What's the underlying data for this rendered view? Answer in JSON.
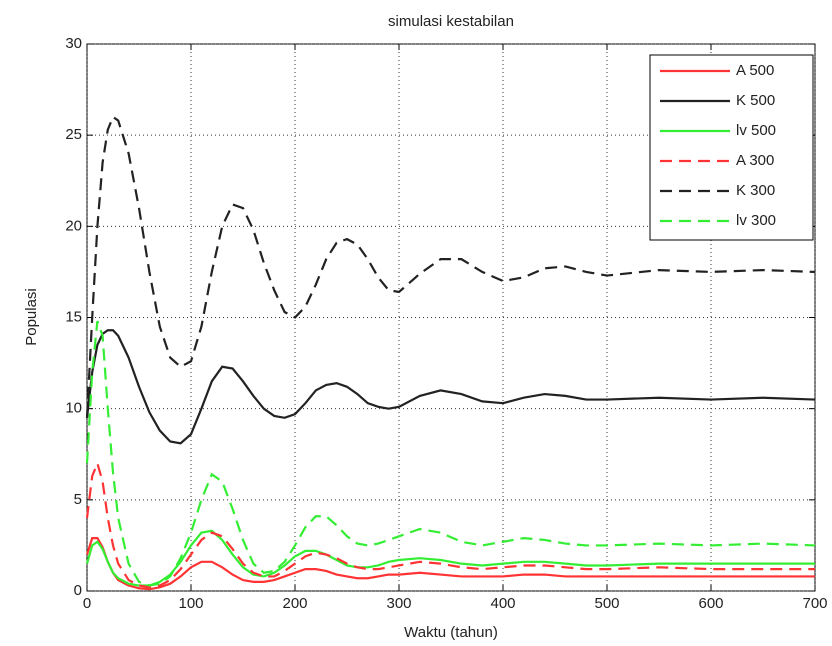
{
  "chart_data": {
    "type": "line",
    "title": "simulasi kestabilan",
    "x_label": "Waktu (tahun)",
    "y_label": "Populasi",
    "x": [
      0,
      5,
      10,
      15,
      20,
      25,
      30,
      40,
      50,
      60,
      70,
      80,
      90,
      100,
      110,
      120,
      130,
      140,
      150,
      160,
      170,
      180,
      190,
      200,
      210,
      220,
      230,
      240,
      250,
      260,
      270,
      280,
      290,
      300,
      320,
      340,
      360,
      380,
      400,
      420,
      440,
      460,
      480,
      500,
      550,
      600,
      650,
      700
    ],
    "series": [
      {
        "name": "A 500",
        "color": "#ff3333",
        "style": "solid",
        "values": [
          2,
          2.9,
          2.9,
          2.4,
          1.6,
          1,
          0.6,
          0.3,
          0.15,
          0.1,
          0.2,
          0.4,
          0.8,
          1.3,
          1.6,
          1.6,
          1.3,
          0.9,
          0.6,
          0.5,
          0.5,
          0.6,
          0.8,
          1,
          1.2,
          1.2,
          1.1,
          0.9,
          0.8,
          0.7,
          0.7,
          0.8,
          0.9,
          0.9,
          1,
          0.9,
          0.8,
          0.8,
          0.8,
          0.9,
          0.9,
          0.8,
          0.8,
          0.8,
          0.8,
          0.8,
          0.8,
          0.8
        ]
      },
      {
        "name": "K 500",
        "color": "#222222",
        "style": "solid",
        "values": [
          9.5,
          12,
          13.5,
          14.1,
          14.3,
          14.3,
          14,
          12.8,
          11.2,
          9.8,
          8.8,
          8.2,
          8.1,
          8.6,
          10,
          11.5,
          12.3,
          12.2,
          11.5,
          10.7,
          10,
          9.6,
          9.5,
          9.7,
          10.3,
          11,
          11.3,
          11.4,
          11.2,
          10.8,
          10.3,
          10.1,
          10,
          10.1,
          10.7,
          11,
          10.8,
          10.4,
          10.3,
          10.6,
          10.8,
          10.7,
          10.5,
          10.5,
          10.6,
          10.5,
          10.6,
          10.5
        ]
      },
      {
        "name": "lv 500",
        "color": "#33ee33",
        "style": "solid",
        "values": [
          1.5,
          2.5,
          2.7,
          2.3,
          1.6,
          1,
          0.7,
          0.4,
          0.3,
          0.3,
          0.5,
          0.9,
          1.6,
          2.5,
          3.2,
          3.3,
          2.8,
          2,
          1.3,
          0.9,
          0.8,
          1,
          1.4,
          1.9,
          2.2,
          2.2,
          2,
          1.7,
          1.4,
          1.3,
          1.3,
          1.4,
          1.6,
          1.7,
          1.8,
          1.7,
          1.5,
          1.4,
          1.5,
          1.6,
          1.6,
          1.5,
          1.4,
          1.4,
          1.5,
          1.5,
          1.5,
          1.5
        ]
      },
      {
        "name": "A 300",
        "color": "#ff3333",
        "style": "dashed",
        "values": [
          4,
          6.3,
          7,
          6,
          4,
          2.5,
          1.5,
          0.6,
          0.3,
          0.2,
          0.3,
          0.6,
          1.2,
          2,
          2.8,
          3.2,
          3,
          2.3,
          1.5,
          1,
          0.8,
          0.8,
          1.1,
          1.5,
          1.9,
          2.1,
          2,
          1.8,
          1.5,
          1.3,
          1.2,
          1.2,
          1.3,
          1.4,
          1.6,
          1.5,
          1.3,
          1.2,
          1.3,
          1.4,
          1.4,
          1.3,
          1.2,
          1.2,
          1.3,
          1.2,
          1.2,
          1.2
        ]
      },
      {
        "name": "K 300",
        "color": "#222222",
        "style": "dashed",
        "values": [
          9.5,
          15,
          20,
          23.5,
          25.3,
          26,
          25.8,
          24,
          21,
          17.5,
          14.5,
          12.8,
          12.3,
          12.6,
          14.5,
          17.5,
          20,
          21.2,
          21,
          19.8,
          18,
          16.5,
          15.3,
          15,
          15.6,
          16.8,
          18.2,
          19.1,
          19.3,
          19,
          18.2,
          17.2,
          16.5,
          16.4,
          17.4,
          18.2,
          18.2,
          17.5,
          17,
          17.2,
          17.7,
          17.8,
          17.5,
          17.3,
          17.6,
          17.5,
          17.6,
          17.5
        ]
      },
      {
        "name": "lv 300",
        "color": "#33ee33",
        "style": "dashed",
        "values": [
          7,
          12,
          14.8,
          14,
          10,
          6.5,
          4,
          1.5,
          0.5,
          0.3,
          0.4,
          0.8,
          1.8,
          3.2,
          5,
          6.4,
          6,
          4.5,
          2.8,
          1.5,
          1,
          1.1,
          1.6,
          2.5,
          3.5,
          4.1,
          4.1,
          3.6,
          3,
          2.6,
          2.5,
          2.6,
          2.8,
          3,
          3.4,
          3.2,
          2.7,
          2.5,
          2.7,
          2.9,
          2.8,
          2.6,
          2.5,
          2.5,
          2.6,
          2.5,
          2.6,
          2.5
        ]
      }
    ],
    "xlim": [
      0,
      700
    ],
    "ylim": [
      0,
      30
    ],
    "xticks": [
      0,
      100,
      200,
      300,
      400,
      500,
      600,
      700
    ],
    "yticks": [
      0,
      5,
      10,
      15,
      20,
      25,
      30
    ],
    "grid": true,
    "legend": "upper right"
  }
}
